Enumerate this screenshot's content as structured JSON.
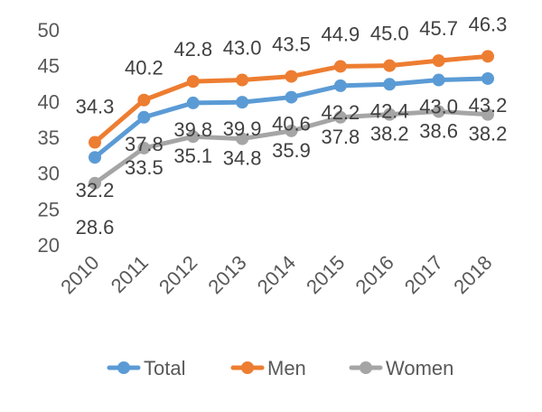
{
  "chart_data": {
    "type": "line",
    "title": "",
    "xlabel": "",
    "ylabel": "",
    "categories": [
      "2010",
      "2011",
      "2012",
      "2013",
      "2014",
      "2015",
      "2016",
      "2017",
      "2018"
    ],
    "ylim": [
      20,
      50
    ],
    "yticks": [
      20,
      25,
      30,
      35,
      40,
      45,
      50
    ],
    "grid": false,
    "legend_position": "bottom",
    "series": [
      {
        "name": "Total",
        "color": "#5B9BD5",
        "values": [
          32.2,
          37.8,
          39.8,
          39.9,
          40.6,
          42.2,
          42.4,
          43.0,
          43.2
        ]
      },
      {
        "name": "Men",
        "color": "#ED7D31",
        "values": [
          34.3,
          40.2,
          42.8,
          43.0,
          43.5,
          44.9,
          45.0,
          45.7,
          46.3
        ]
      },
      {
        "name": "Women",
        "color": "#A5A5A5",
        "values": [
          28.6,
          33.5,
          35.1,
          34.8,
          35.9,
          37.8,
          38.2,
          38.6,
          38.2
        ]
      }
    ]
  }
}
